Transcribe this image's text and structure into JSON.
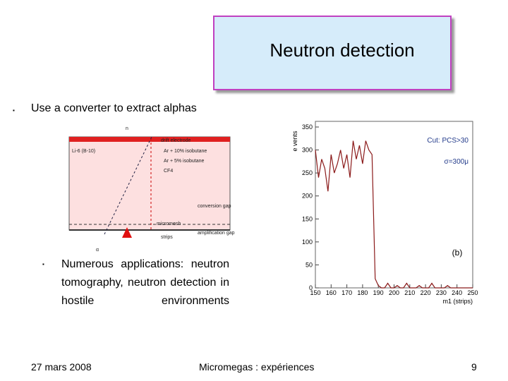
{
  "header": {
    "title": "Neutron detection"
  },
  "bullets": [
    {
      "text": "Use a converter to extract alphas"
    },
    {
      "text": "Numerous applications: neutron tomography, neutron detection in hostile environments"
    }
  ],
  "diagram": {
    "labels": [
      "n",
      "drift electrode",
      "Li-6 (B-10)",
      "Ar + 10% isobutane",
      "Ar + 5% isobutane",
      "CF4",
      "conversion gap",
      "micromesh",
      "amplification gap",
      "strips",
      "α"
    ]
  },
  "chart_data": {
    "type": "line",
    "y_label": "e vents",
    "x_label": "m1 (strips)",
    "annotations": [
      "Cut: PCS>30",
      "σ=300μ",
      "(b)"
    ],
    "color": "#8b1a1a",
    "x": [
      150,
      152,
      154,
      156,
      158,
      160,
      162,
      164,
      166,
      168,
      170,
      172,
      174,
      176,
      178,
      180,
      182,
      184,
      186,
      188,
      190,
      192,
      194,
      196,
      198,
      200,
      202,
      204,
      206,
      208,
      210,
      212,
      214,
      216,
      218,
      220,
      222,
      224,
      226,
      228,
      230,
      232,
      234,
      236,
      238,
      240,
      242,
      244,
      246,
      248,
      250
    ],
    "values": [
      300,
      240,
      280,
      260,
      210,
      290,
      250,
      270,
      300,
      260,
      290,
      240,
      320,
      280,
      310,
      270,
      320,
      300,
      290,
      20,
      5,
      0,
      0,
      10,
      0,
      0,
      5,
      0,
      0,
      10,
      0,
      0,
      0,
      5,
      0,
      0,
      0,
      10,
      0,
      0,
      0,
      0,
      5,
      0,
      0,
      0,
      0,
      0,
      0,
      0,
      0
    ],
    "xlim": [
      150,
      250
    ],
    "xticks": [
      150,
      160,
      170,
      180,
      190,
      200,
      210,
      220,
      230,
      240,
      250
    ],
    "ylim": [
      0,
      350
    ],
    "yticks": [
      0,
      50,
      100,
      150,
      200,
      250,
      300,
      350
    ]
  },
  "footer": {
    "date": "27 mars 2008",
    "center": "Micromegas : expériences",
    "page": "9"
  }
}
